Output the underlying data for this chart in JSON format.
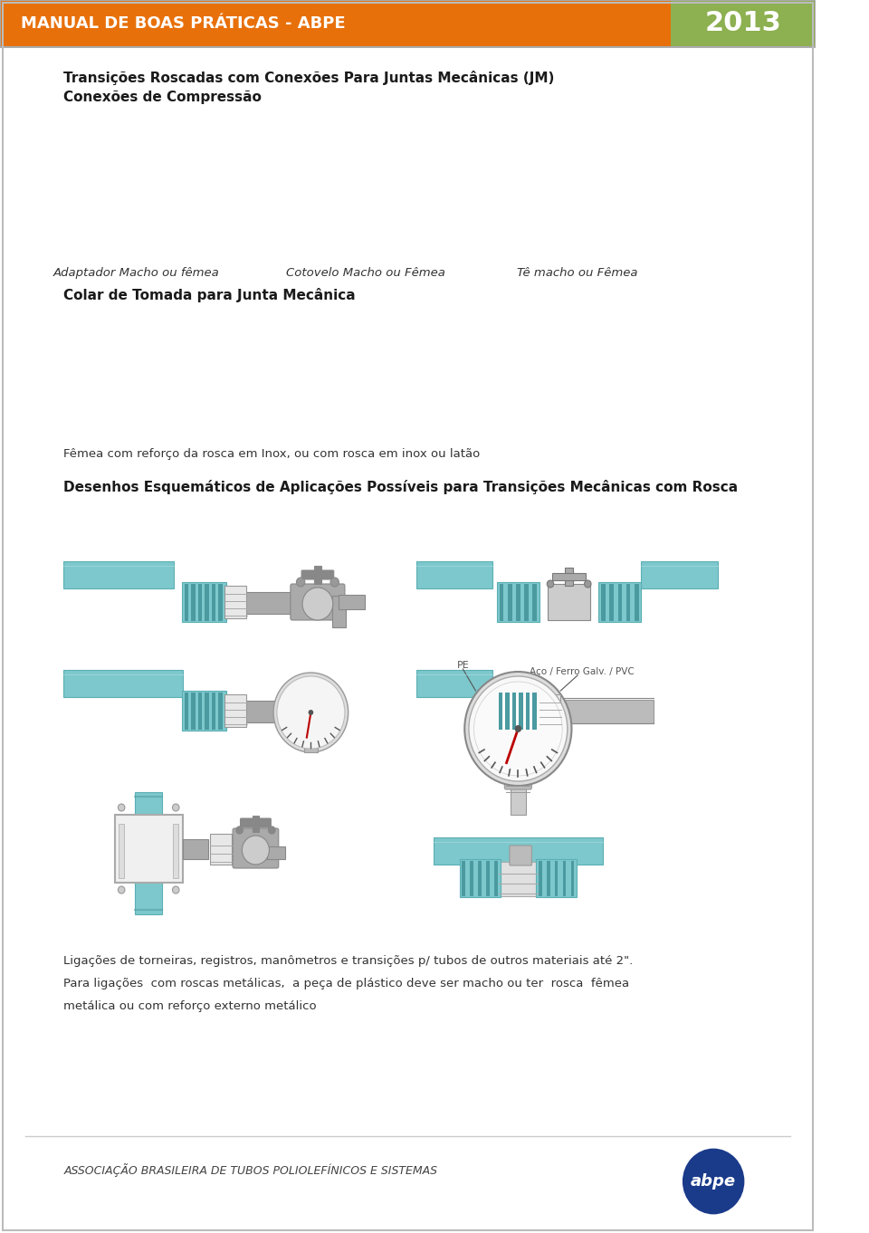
{
  "header_text": "MANUAL DE BOAS PRÁTICAS - ABPE",
  "header_year": "2013",
  "header_bg_color": "#E8700A",
  "header_year_bg_color": "#8DB050",
  "header_text_color": "#FFFFFF",
  "title1": "Transições Roscadas com Conexões Para Juntas Mecânicas (JM)",
  "title2": "Conexões de Compressão",
  "label1": "Adaptador Macho ou fêmea",
  "label2": "Cotovelo Macho ou Fêmea",
  "label3": "Tê macho ou Fêmea",
  "label4": "Colar de Tomada para Junta Mecânica",
  "desc1": "Fêmea com reforço da rosca em Inox, ou com rosca em inox ou latão",
  "section_title": "Desenhos Esquemáticos de Aplicações Possíveis para Transições Mecânicas com Rosca",
  "footer_text1": "Ligações de torneiras, registros, manômetros e transições p/ tubos de outros materiais até 2\".",
  "footer_text2": "Para ligações  com roscas metálicas,  a peça de plástico deve ser macho ou ter  rosca  fêmea",
  "footer_text3": "metálica ou com reforço externo metálico",
  "assoc_text": "ASSOCIAÇÃO BRASILEIRA DE TUBOS POLIOLEFÍNICOS E SISTEMAS",
  "teal_color": "#7DC8CC",
  "teal_dark": "#5AAFB5",
  "teal_stripe": "#4A9AA0",
  "gray_fitting": "#AAAAAA",
  "gray_dark": "#888888",
  "gray_med": "#BBBBBB",
  "white_fitting": "#E8E8E8",
  "background_color": "#FFFFFF"
}
